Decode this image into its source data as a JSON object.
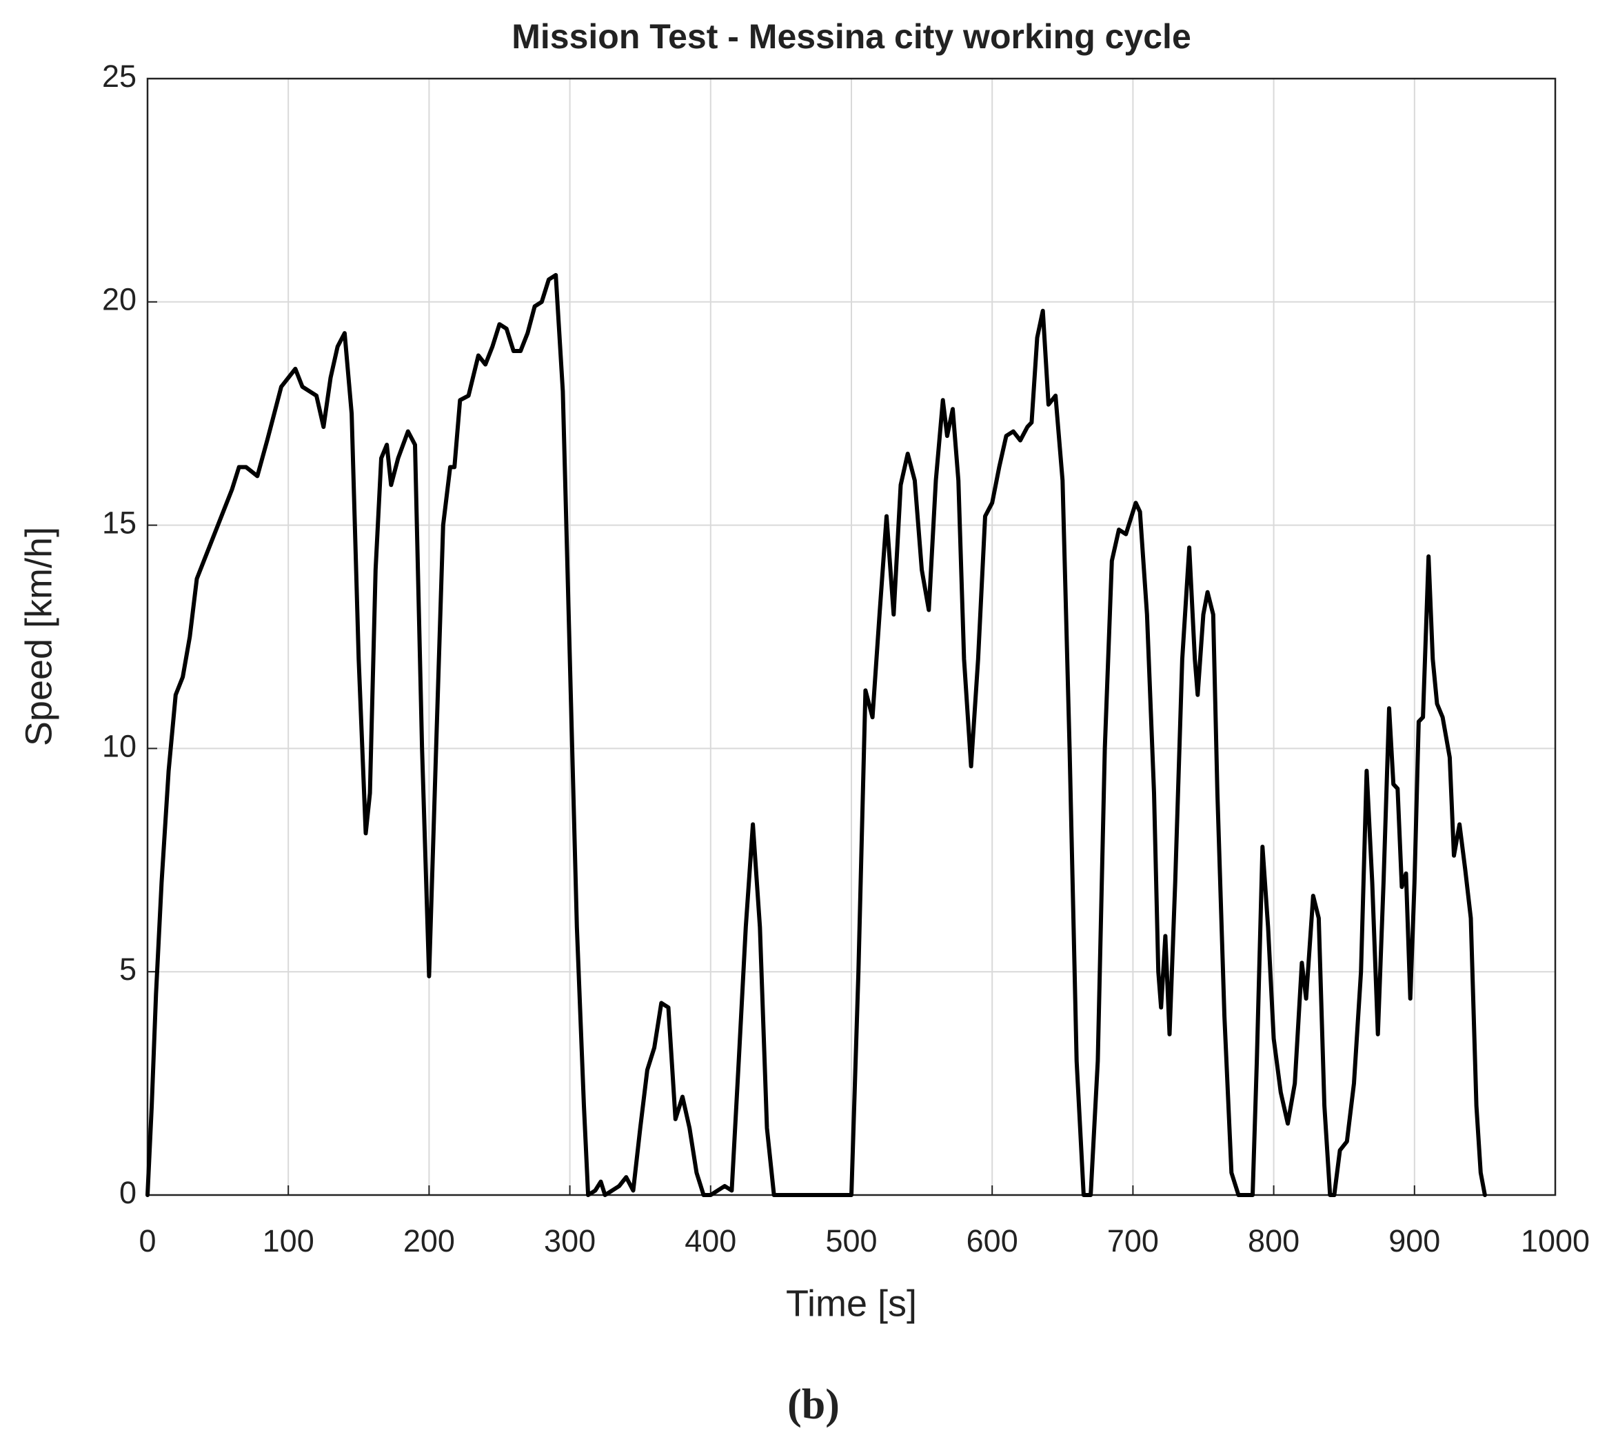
{
  "chart_data": {
    "type": "line",
    "title": "Mission Test - Messina city working cycle",
    "x_label": "Time [s]",
    "y_label": "Speed [km/h]",
    "color": "#000000",
    "grid": true,
    "xlim": [
      0,
      1000
    ],
    "xticks": [
      0,
      100,
      200,
      300,
      400,
      500,
      600,
      700,
      800,
      900,
      1000
    ],
    "ylim": [
      0,
      25
    ],
    "yticks": [
      0,
      5,
      10,
      15,
      20,
      25
    ],
    "x": [
      0,
      3,
      6,
      10,
      15,
      20,
      25,
      30,
      35,
      40,
      50,
      60,
      65,
      70,
      78,
      85,
      90,
      95,
      100,
      105,
      110,
      120,
      125,
      130,
      135,
      140,
      145,
      150,
      155,
      158,
      162,
      166,
      170,
      173,
      178,
      185,
      190,
      195,
      200,
      205,
      210,
      215,
      218,
      222,
      228,
      235,
      240,
      245,
      250,
      255,
      260,
      265,
      270,
      275,
      280,
      285,
      290,
      295,
      300,
      305,
      310,
      313,
      318,
      322,
      325,
      335,
      340,
      345,
      350,
      355,
      360,
      365,
      370,
      375,
      380,
      385,
      390,
      395,
      400,
      410,
      415,
      420,
      425,
      430,
      435,
      440,
      445,
      500,
      505,
      510,
      515,
      520,
      525,
      530,
      535,
      540,
      545,
      550,
      555,
      560,
      565,
      568,
      572,
      576,
      580,
      585,
      590,
      595,
      600,
      605,
      610,
      615,
      620,
      625,
      628,
      632,
      636,
      640,
      645,
      650,
      655,
      660,
      665,
      670,
      675,
      680,
      685,
      690,
      695,
      698,
      702,
      705,
      710,
      715,
      718,
      720,
      723,
      726,
      730,
      735,
      740,
      744,
      746,
      750,
      753,
      757,
      760,
      765,
      770,
      775,
      785,
      788,
      792,
      796,
      800,
      805,
      810,
      815,
      820,
      823,
      828,
      832,
      836,
      840,
      843,
      847,
      852,
      857,
      862,
      866,
      870,
      874,
      878,
      882,
      885,
      888,
      891,
      894,
      897,
      900,
      903,
      906,
      910,
      913,
      916,
      920,
      925,
      928,
      932,
      936,
      940,
      944,
      947,
      950
    ],
    "values": [
      0,
      2,
      4.5,
      7,
      9.5,
      11.2,
      11.6,
      12.5,
      13.8,
      14.2,
      15,
      15.8,
      16.3,
      16.3,
      16.1,
      16.9,
      17.5,
      18.1,
      18.3,
      18.5,
      18.1,
      17.9,
      17.2,
      18.3,
      19,
      19.3,
      17.5,
      12,
      8.1,
      9,
      14,
      16.5,
      16.8,
      15.9,
      16.5,
      17.1,
      16.8,
      10,
      4.9,
      10,
      15,
      16.3,
      16.3,
      17.8,
      17.9,
      18.8,
      18.6,
      19,
      19.5,
      19.4,
      18.9,
      18.9,
      19.3,
      19.9,
      20,
      20.5,
      20.6,
      18,
      12,
      6,
      2,
      0,
      0.1,
      0.3,
      0,
      0.2,
      0.4,
      0.1,
      1.5,
      2.8,
      3.3,
      4.3,
      4.2,
      1.7,
      2.2,
      1.5,
      0.5,
      0,
      0,
      0.2,
      0.1,
      3,
      6,
      8.3,
      6,
      1.5,
      0,
      0,
      5,
      11.3,
      10.7,
      13,
      15.2,
      13,
      15.9,
      16.6,
      16,
      14,
      13.1,
      16,
      17.8,
      17,
      17.6,
      16,
      12,
      9.6,
      12,
      15.2,
      15.5,
      16.3,
      17,
      17.1,
      16.9,
      17.2,
      17.3,
      19.2,
      19.8,
      17.7,
      17.9,
      16,
      10,
      3,
      0,
      0,
      3,
      10,
      14.2,
      14.9,
      14.8,
      15.1,
      15.5,
      15.3,
      13,
      9,
      5,
      4.2,
      5.8,
      3.6,
      7,
      12,
      14.5,
      12,
      11.2,
      13,
      13.5,
      13,
      9,
      4,
      0.5,
      0,
      0,
      3,
      7.8,
      6,
      3.5,
      2.3,
      1.6,
      2.5,
      5.2,
      4.4,
      6.7,
      6.2,
      2,
      0,
      0,
      1,
      1.2,
      2.5,
      5,
      9.5,
      7,
      3.6,
      7,
      10.9,
      9.2,
      9.1,
      6.9,
      7.2,
      4.4,
      7,
      10.6,
      10.7,
      14.3,
      12,
      11,
      10.7,
      9.8,
      7.6,
      8.3,
      7.3,
      6.2,
      2,
      0.5,
      0
    ]
  },
  "caption": "(b)"
}
